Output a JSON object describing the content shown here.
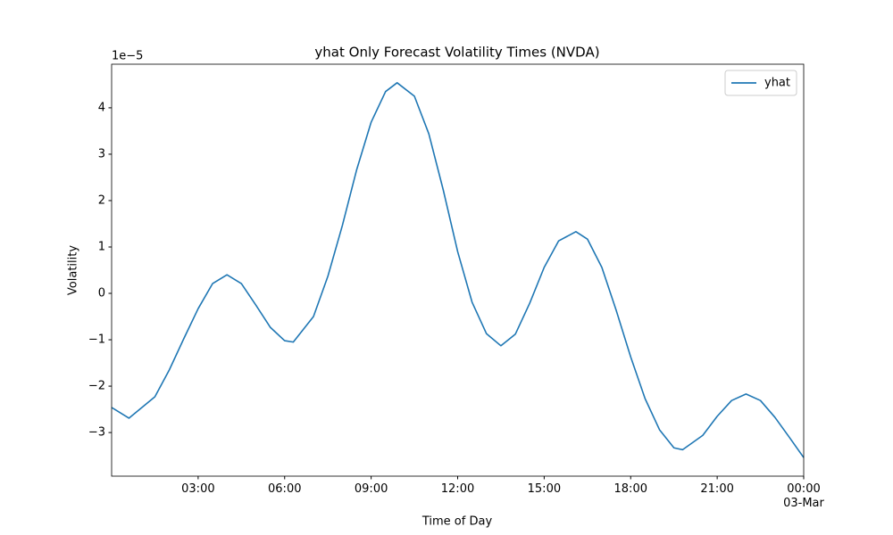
{
  "chart_data": {
    "type": "line",
    "title": "yhat Only Forecast Volatility Times (NVDA)",
    "x_label": "Time of Day",
    "y_label": "Volatility",
    "y_offset_label": "1e−5",
    "x": [
      0,
      0.6,
      1.5,
      2,
      2.5,
      3,
      3.5,
      4,
      4.5,
      5,
      5.5,
      6,
      6.3,
      7,
      7.5,
      8,
      8.5,
      9,
      9.5,
      9.9,
      10.5,
      11,
      11.5,
      12,
      12.5,
      13,
      13.5,
      14,
      14.5,
      15,
      15.5,
      16.1,
      16.5,
      17,
      17.5,
      18,
      18.5,
      19,
      19.5,
      19.8,
      20.5,
      21,
      21.5,
      22,
      22.5,
      23,
      23.5,
      24
    ],
    "series": [
      {
        "name": "yhat",
        "color": "#1f77b4",
        "values": [
          -2.46,
          -2.69,
          -2.23,
          -1.65,
          -0.98,
          -0.33,
          0.21,
          0.4,
          0.21,
          -0.25,
          -0.73,
          -1.02,
          -1.05,
          -0.5,
          0.37,
          1.46,
          2.67,
          3.69,
          4.35,
          4.54,
          4.25,
          3.44,
          2.23,
          0.9,
          -0.19,
          -0.87,
          -1.13,
          -0.88,
          -0.21,
          0.56,
          1.13,
          1.33,
          1.17,
          0.56,
          -0.37,
          -1.37,
          -2.27,
          -2.94,
          -3.33,
          -3.37,
          -3.06,
          -2.65,
          -2.31,
          -2.17,
          -2.31,
          -2.67,
          -3.1,
          -3.54
        ]
      }
    ],
    "xlim": [
      0,
      24
    ],
    "xticks": [
      {
        "value": 3,
        "label": "03:00"
      },
      {
        "value": 6,
        "label": "06:00"
      },
      {
        "value": 9,
        "label": "09:00"
      },
      {
        "value": 12,
        "label": "12:00"
      },
      {
        "value": 15,
        "label": "15:00"
      },
      {
        "value": 18,
        "label": "18:00"
      },
      {
        "value": 21,
        "label": "21:00"
      },
      {
        "value": 24,
        "label": "00:00\n03-Mar"
      }
    ],
    "ylim": [
      -3.94,
      4.94
    ],
    "yticks": [
      {
        "value": -3,
        "label": "−3"
      },
      {
        "value": -2,
        "label": "−2"
      },
      {
        "value": -1,
        "label": "−1"
      },
      0,
      1,
      2,
      3,
      4
    ],
    "legend": "upper right",
    "grid": false
  }
}
